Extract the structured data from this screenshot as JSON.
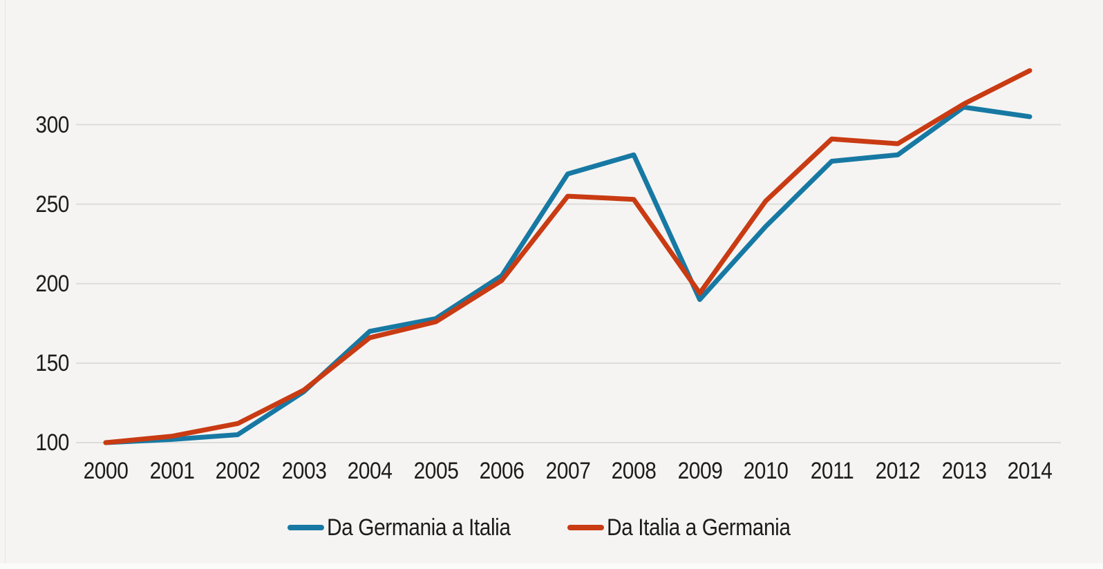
{
  "chart_data": {
    "type": "line",
    "x": [
      2000,
      2001,
      2002,
      2003,
      2004,
      2005,
      2006,
      2007,
      2008,
      2009,
      2010,
      2011,
      2012,
      2013,
      2014
    ],
    "series": [
      {
        "name": "Da Germania a Italia",
        "color": "#1779A3",
        "values": [
          100,
          102,
          105,
          132,
          170,
          178,
          205,
          269,
          281,
          190,
          236,
          277,
          281,
          311,
          305
        ]
      },
      {
        "name": "Da Italia a Germania",
        "color": "#C93B13",
        "values": [
          100,
          104,
          112,
          133,
          166,
          176,
          202,
          255,
          253,
          194,
          252,
          291,
          288,
          313,
          334
        ]
      }
    ],
    "yticks": [
      100,
      150,
      200,
      250,
      300
    ],
    "ylim": [
      100,
      340
    ],
    "xlabel": "",
    "ylabel": "",
    "title": "",
    "grid": true,
    "legend_position": "bottom-center",
    "background": "#f5f4f2",
    "gridline_color": "#dcdcda",
    "text_color": "#1c1c1c"
  }
}
